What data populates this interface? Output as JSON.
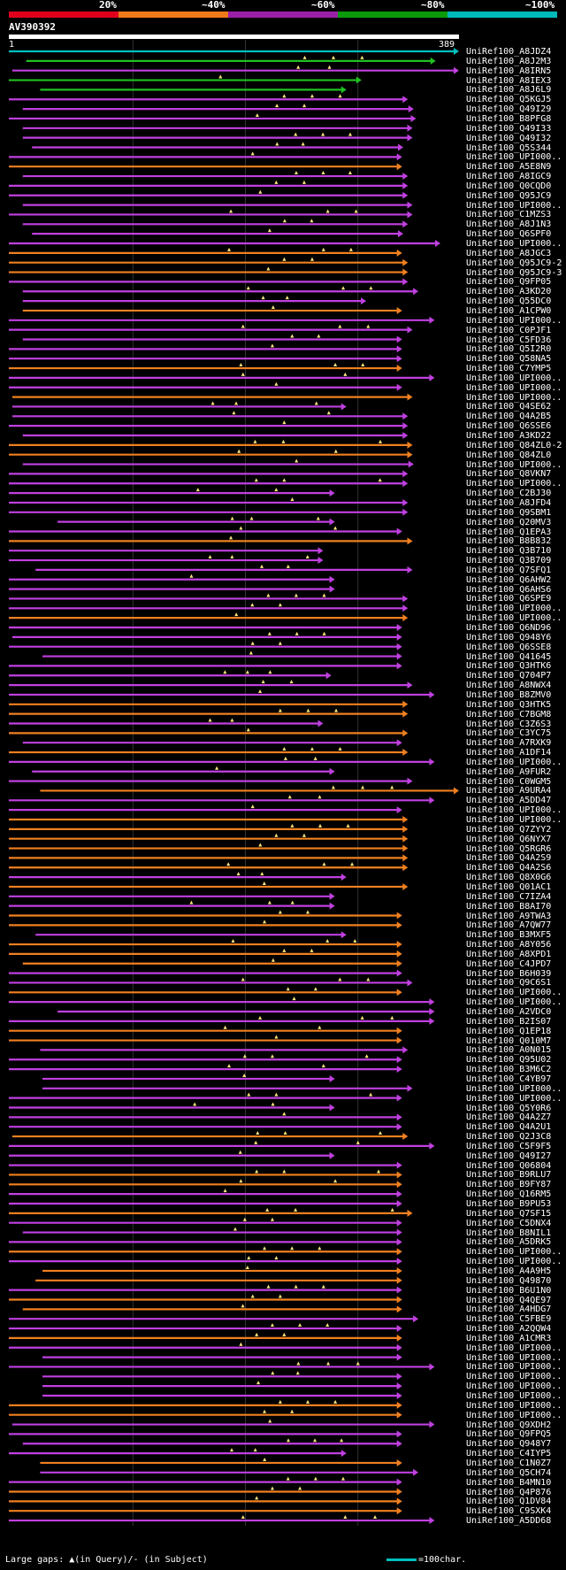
{
  "legend": {
    "bands": [
      {
        "label": "20%",
        "color": "#e0001c"
      },
      {
        "label": "~40%",
        "color": "#ef7a1a"
      },
      {
        "label": "~60%",
        "color": "#9b1fa8"
      },
      {
        "label": "~80%",
        "color": "#0a9a0a"
      },
      {
        "label": "~100%",
        "color": "#00b9b9"
      }
    ]
  },
  "query": {
    "name": "AV390392",
    "start_label": "1",
    "end_label": "389"
  },
  "colors": {
    "cyan": "#00c0c0",
    "green": "#20c020",
    "purple": "#c040e0",
    "orange": "#f08020",
    "gap": "#ffe680"
  },
  "hits": [
    {
      "name": "UniRef100_A8JDZ4",
      "c": "cyan",
      "s": 1,
      "e": 389
    },
    {
      "name": "UniRef100_A8J2M3",
      "c": "green",
      "s": 16,
      "e": 369
    },
    {
      "name": "UniRef100_A8IRN5",
      "c": "purple",
      "s": 4,
      "e": 389
    },
    {
      "name": "UniRef100_A8IEX3",
      "c": "green",
      "s": 1,
      "e": 305
    },
    {
      "name": "UniRef100_A8J6L9",
      "c": "green",
      "s": 28,
      "e": 292
    },
    {
      "name": "UniRef100_Q5KGJ5",
      "c": "purple",
      "s": 1,
      "e": 345
    },
    {
      "name": "UniRef100_Q49I29",
      "c": "purple",
      "s": 13,
      "e": 350
    },
    {
      "name": "UniRef100_B8PFG8",
      "c": "purple",
      "s": 1,
      "e": 352
    },
    {
      "name": "UniRef100_Q49I33",
      "c": "purple",
      "s": 13,
      "e": 349
    },
    {
      "name": "UniRef100_Q49I32",
      "c": "purple",
      "s": 13,
      "e": 349
    },
    {
      "name": "UniRef100_Q5S344",
      "c": "purple",
      "s": 21,
      "e": 341
    },
    {
      "name": "UniRef100_UPI000..",
      "c": "purple",
      "s": 1,
      "e": 340
    },
    {
      "name": "UniRef100_A5E8N9",
      "c": "orange",
      "s": 1,
      "e": 340
    },
    {
      "name": "UniRef100_A8IGC9",
      "c": "purple",
      "s": 13,
      "e": 345
    },
    {
      "name": "UniRef100_Q0CQD0",
      "c": "purple",
      "s": 1,
      "e": 345
    },
    {
      "name": "UniRef100_Q95JC9",
      "c": "purple",
      "s": 1,
      "e": 345
    },
    {
      "name": "UniRef100_UPI000..",
      "c": "purple",
      "s": 13,
      "e": 349
    },
    {
      "name": "UniRef100_C1MZS3",
      "c": "purple",
      "s": 1,
      "e": 349
    },
    {
      "name": "UniRef100_A8J1N3",
      "c": "purple",
      "s": 13,
      "e": 345
    },
    {
      "name": "UniRef100_Q6SPF0",
      "c": "purple",
      "s": 21,
      "e": 341
    },
    {
      "name": "UniRef100_UPI000..",
      "c": "purple",
      "s": 1,
      "e": 373
    },
    {
      "name": "UniRef100_A8JGC3",
      "c": "orange",
      "s": 1,
      "e": 340
    },
    {
      "name": "UniRef100_Q95JC9-2",
      "c": "orange",
      "s": 1,
      "e": 345
    },
    {
      "name": "UniRef100_Q95JC9-3",
      "c": "orange",
      "s": 1,
      "e": 345
    },
    {
      "name": "UniRef100_Q9FP05",
      "c": "purple",
      "s": 1,
      "e": 345
    },
    {
      "name": "UniRef100_A3KD20",
      "c": "purple",
      "s": 13,
      "e": 354
    },
    {
      "name": "UniRef100_Q55DC0",
      "c": "purple",
      "s": 13,
      "e": 309
    },
    {
      "name": "UniRef100_A1CPW0",
      "c": "orange",
      "s": 13,
      "e": 340
    },
    {
      "name": "UniRef100_UPI000..",
      "c": "purple",
      "s": 1,
      "e": 368
    },
    {
      "name": "UniRef100_C0PJF1",
      "c": "purple",
      "s": 1,
      "e": 349
    },
    {
      "name": "UniRef100_C5FD36",
      "c": "purple",
      "s": 13,
      "e": 340
    },
    {
      "name": "UniRef100_Q5I2R0",
      "c": "purple",
      "s": 1,
      "e": 340
    },
    {
      "name": "UniRef100_Q58NA5",
      "c": "purple",
      "s": 1,
      "e": 340
    },
    {
      "name": "UniRef100_C7YMP5",
      "c": "orange",
      "s": 1,
      "e": 340
    },
    {
      "name": "UniRef100_UPI000..",
      "c": "purple",
      "s": 1,
      "e": 368
    },
    {
      "name": "UniRef100_UPI000..",
      "c": "purple",
      "s": 1,
      "e": 340
    },
    {
      "name": "UniRef100_UPI000..",
      "c": "orange",
      "s": 4,
      "e": 349
    },
    {
      "name": "UniRef100_Q4SE62",
      "c": "purple",
      "s": 4,
      "e": 292
    },
    {
      "name": "UniRef100_Q4A2B5",
      "c": "purple",
      "s": 4,
      "e": 345
    },
    {
      "name": "UniRef100_Q6SSE6",
      "c": "purple",
      "s": 1,
      "e": 345
    },
    {
      "name": "UniRef100_A3KD22",
      "c": "purple",
      "s": 13,
      "e": 345
    },
    {
      "name": "UniRef100_Q84ZL0-2",
      "c": "orange",
      "s": 1,
      "e": 349
    },
    {
      "name": "UniRef100_Q84ZL0",
      "c": "orange",
      "s": 1,
      "e": 349
    },
    {
      "name": "UniRef100_UPI000..",
      "c": "purple",
      "s": 13,
      "e": 350
    },
    {
      "name": "UniRef100_Q8VKN7",
      "c": "purple",
      "s": 1,
      "e": 345
    },
    {
      "name": "UniRef100_UPI000..",
      "c": "purple",
      "s": 1,
      "e": 345
    },
    {
      "name": "UniRef100_C2BJ30",
      "c": "purple",
      "s": 1,
      "e": 282
    },
    {
      "name": "UniRef100_A8JFD4",
      "c": "purple",
      "s": 1,
      "e": 345
    },
    {
      "name": "UniRef100_Q9SBM1",
      "c": "purple",
      "s": 1,
      "e": 345
    },
    {
      "name": "UniRef100_Q20MV3",
      "c": "purple",
      "s": 43,
      "e": 282
    },
    {
      "name": "UniRef100_Q1EPA3",
      "c": "purple",
      "s": 1,
      "e": 340
    },
    {
      "name": "UniRef100_B8B832",
      "c": "orange",
      "s": 1,
      "e": 349
    },
    {
      "name": "UniRef100_Q3B710",
      "c": "purple",
      "s": 1,
      "e": 272
    },
    {
      "name": "UniRef100_Q3B709",
      "c": "purple",
      "s": 1,
      "e": 272
    },
    {
      "name": "UniRef100_Q7SFQ1",
      "c": "purple",
      "s": 24,
      "e": 349
    },
    {
      "name": "UniRef100_Q6AHW2",
      "c": "purple",
      "s": 1,
      "e": 282
    },
    {
      "name": "UniRef100_Q6AHS6",
      "c": "purple",
      "s": 1,
      "e": 282
    },
    {
      "name": "UniRef100_Q6SPE9",
      "c": "purple",
      "s": 1,
      "e": 345
    },
    {
      "name": "UniRef100_UPI000..",
      "c": "purple",
      "s": 1,
      "e": 345
    },
    {
      "name": "UniRef100_UPI000..",
      "c": "orange",
      "s": 1,
      "e": 345
    },
    {
      "name": "UniRef100_Q6ND96",
      "c": "purple",
      "s": 1,
      "e": 340
    },
    {
      "name": "UniRef100_Q948Y6",
      "c": "purple",
      "s": 4,
      "e": 340
    },
    {
      "name": "UniRef100_Q6SSE8",
      "c": "purple",
      "s": 1,
      "e": 340
    },
    {
      "name": "UniRef100_Q41645",
      "c": "purple",
      "s": 30,
      "e": 340
    },
    {
      "name": "UniRef100_Q3HTK6",
      "c": "purple",
      "s": 1,
      "e": 340
    },
    {
      "name": "UniRef100_Q704P7",
      "c": "purple",
      "s": 1,
      "e": 279
    },
    {
      "name": "UniRef100_A8NWX4",
      "c": "purple",
      "s": 1,
      "e": 349
    },
    {
      "name": "UniRef100_B8ZMV0",
      "c": "purple",
      "s": 1,
      "e": 368
    },
    {
      "name": "UniRef100_Q3HTK5",
      "c": "orange",
      "s": 1,
      "e": 345
    },
    {
      "name": "UniRef100_C7BGM8",
      "c": "orange",
      "s": 1,
      "e": 345
    },
    {
      "name": "UniRef100_C3Z6S3",
      "c": "purple",
      "s": 1,
      "e": 272
    },
    {
      "name": "UniRef100_C3YC75",
      "c": "orange",
      "s": 1,
      "e": 345
    },
    {
      "name": "UniRef100_A7RXK9",
      "c": "purple",
      "s": 13,
      "e": 340
    },
    {
      "name": "UniRef100_A1DF14",
      "c": "orange",
      "s": 1,
      "e": 345
    },
    {
      "name": "UniRef100_UPI000..",
      "c": "purple",
      "s": 1,
      "e": 368
    },
    {
      "name": "UniRef100_A9FUR2",
      "c": "purple",
      "s": 21,
      "e": 282
    },
    {
      "name": "UniRef100_C0WGM5",
      "c": "purple",
      "s": 1,
      "e": 349
    },
    {
      "name": "UniRef100_A9URA4",
      "c": "orange",
      "s": 28,
      "e": 389
    },
    {
      "name": "UniRef100_A5DD47",
      "c": "purple",
      "s": 1,
      "e": 368
    },
    {
      "name": "UniRef100_UPI000..",
      "c": "purple",
      "s": 1,
      "e": 340
    },
    {
      "name": "UniRef100_UPI000..",
      "c": "orange",
      "s": 1,
      "e": 345
    },
    {
      "name": "UniRef100_Q7ZYY2",
      "c": "orange",
      "s": 1,
      "e": 345
    },
    {
      "name": "UniRef100_Q6NYX7",
      "c": "orange",
      "s": 1,
      "e": 345
    },
    {
      "name": "UniRef100_Q5RGR6",
      "c": "orange",
      "s": 1,
      "e": 345
    },
    {
      "name": "UniRef100_Q4A2S9",
      "c": "orange",
      "s": 1,
      "e": 345
    },
    {
      "name": "UniRef100_Q4A2S6",
      "c": "orange",
      "s": 1,
      "e": 345
    },
    {
      "name": "UniRef100_Q8X0G6",
      "c": "purple",
      "s": 1,
      "e": 292
    },
    {
      "name": "UniRef100_Q01AC1",
      "c": "orange",
      "s": 1,
      "e": 345
    },
    {
      "name": "UniRef100_C7IZA4",
      "c": "purple",
      "s": 1,
      "e": 282
    },
    {
      "name": "UniRef100_B8AI70",
      "c": "purple",
      "s": 1,
      "e": 282
    },
    {
      "name": "UniRef100_A9TWA3",
      "c": "orange",
      "s": 1,
      "e": 340
    },
    {
      "name": "UniRef100_A7QW77",
      "c": "orange",
      "s": 1,
      "e": 340
    },
    {
      "name": "UniRef100_B3MXF5",
      "c": "purple",
      "s": 24,
      "e": 292
    },
    {
      "name": "UniRef100_A8Y056",
      "c": "orange",
      "s": 1,
      "e": 340
    },
    {
      "name": "UniRef100_A8XPD1",
      "c": "orange",
      "s": 1,
      "e": 340
    },
    {
      "name": "UniRef100_C4JPD7",
      "c": "orange",
      "s": 13,
      "e": 340
    },
    {
      "name": "UniRef100_B6H039",
      "c": "purple",
      "s": 1,
      "e": 340
    },
    {
      "name": "UniRef100_Q9C6S1",
      "c": "purple",
      "s": 1,
      "e": 349
    },
    {
      "name": "UniRef100_UPI000..",
      "c": "orange",
      "s": 1,
      "e": 340
    },
    {
      "name": "UniRef100_UPI000..",
      "c": "purple",
      "s": 1,
      "e": 368
    },
    {
      "name": "UniRef100_A2VDC0",
      "c": "purple",
      "s": 43,
      "e": 368
    },
    {
      "name": "UniRef100_B2IS07",
      "c": "purple",
      "s": 1,
      "e": 368
    },
    {
      "name": "UniRef100_Q1EP18",
      "c": "orange",
      "s": 1,
      "e": 340
    },
    {
      "name": "UniRef100_Q010M7",
      "c": "orange",
      "s": 1,
      "e": 340
    },
    {
      "name": "UniRef100_A0N015",
      "c": "purple",
      "s": 28,
      "e": 345
    },
    {
      "name": "UniRef100_Q95U02",
      "c": "purple",
      "s": 1,
      "e": 340
    },
    {
      "name": "UniRef100_B3M6C2",
      "c": "purple",
      "s": 1,
      "e": 340
    },
    {
      "name": "UniRef100_C4YB97",
      "c": "purple",
      "s": 30,
      "e": 282
    },
    {
      "name": "UniRef100_UPI000..",
      "c": "purple",
      "s": 30,
      "e": 349
    },
    {
      "name": "UniRef100_UPI000..",
      "c": "purple",
      "s": 1,
      "e": 340
    },
    {
      "name": "UniRef100_Q5Y0R6",
      "c": "purple",
      "s": 1,
      "e": 282
    },
    {
      "name": "UniRef100_Q4A2Z7",
      "c": "purple",
      "s": 1,
      "e": 340
    },
    {
      "name": "UniRef100_Q4A2U1",
      "c": "purple",
      "s": 1,
      "e": 340
    },
    {
      "name": "UniRef100_Q2J3C8",
      "c": "orange",
      "s": 4,
      "e": 345
    },
    {
      "name": "UniRef100_C5F9F5",
      "c": "purple",
      "s": 1,
      "e": 368
    },
    {
      "name": "UniRef100_Q49I27",
      "c": "purple",
      "s": 1,
      "e": 282
    },
    {
      "name": "UniRef100_Q06804",
      "c": "purple",
      "s": 1,
      "e": 340
    },
    {
      "name": "UniRef100_B9RLU7",
      "c": "orange",
      "s": 1,
      "e": 340
    },
    {
      "name": "UniRef100_B9FY87",
      "c": "orange",
      "s": 1,
      "e": 340
    },
    {
      "name": "UniRef100_Q16RM5",
      "c": "purple",
      "s": 1,
      "e": 340
    },
    {
      "name": "UniRef100_B9PU53",
      "c": "purple",
      "s": 1,
      "e": 340
    },
    {
      "name": "UniRef100_Q7SF15",
      "c": "orange",
      "s": 1,
      "e": 349
    },
    {
      "name": "UniRef100_C5DNX4",
      "c": "purple",
      "s": 1,
      "e": 340
    },
    {
      "name": "UniRef100_B8NIL1",
      "c": "purple",
      "s": 13,
      "e": 340
    },
    {
      "name": "UniRef100_A5DRK5",
      "c": "purple",
      "s": 1,
      "e": 340
    },
    {
      "name": "UniRef100_UPI000..",
      "c": "orange",
      "s": 1,
      "e": 340
    },
    {
      "name": "UniRef100_UPI000..",
      "c": "purple",
      "s": 1,
      "e": 340
    },
    {
      "name": "UniRef100_A4A9H5",
      "c": "orange",
      "s": 30,
      "e": 340
    },
    {
      "name": "UniRef100_Q49870",
      "c": "orange",
      "s": 24,
      "e": 340
    },
    {
      "name": "UniRef100_B6U1N0",
      "c": "purple",
      "s": 1,
      "e": 340
    },
    {
      "name": "UniRef100_Q4QE97",
      "c": "orange",
      "s": 1,
      "e": 340
    },
    {
      "name": "UniRef100_A4HDG7",
      "c": "orange",
      "s": 13,
      "e": 340
    },
    {
      "name": "UniRef100_C5FBE9",
      "c": "purple",
      "s": 1,
      "e": 354
    },
    {
      "name": "UniRef100_A2QQW4",
      "c": "purple",
      "s": 1,
      "e": 340
    },
    {
      "name": "UniRef100_A1CMR3",
      "c": "orange",
      "s": 1,
      "e": 340
    },
    {
      "name": "UniRef100_UPI000..",
      "c": "purple",
      "s": 1,
      "e": 340
    },
    {
      "name": "UniRef100_UPI000..",
      "c": "purple",
      "s": 30,
      "e": 340
    },
    {
      "name": "UniRef100_UPI000..",
      "c": "purple",
      "s": 1,
      "e": 368
    },
    {
      "name": "UniRef100_UPI000..",
      "c": "purple",
      "s": 30,
      "e": 340
    },
    {
      "name": "UniRef100_UPI000..",
      "c": "purple",
      "s": 30,
      "e": 340
    },
    {
      "name": "UniRef100_UPI000..",
      "c": "purple",
      "s": 30,
      "e": 340
    },
    {
      "name": "UniRef100_UPI000..",
      "c": "orange",
      "s": 1,
      "e": 340
    },
    {
      "name": "UniRef100_UPI000..",
      "c": "orange",
      "s": 1,
      "e": 340
    },
    {
      "name": "UniRef100_Q9XDH2",
      "c": "purple",
      "s": 4,
      "e": 368
    },
    {
      "name": "UniRef100_Q9FPQ5",
      "c": "purple",
      "s": 1,
      "e": 340
    },
    {
      "name": "UniRef100_Q948Y7",
      "c": "purple",
      "s": 13,
      "e": 340
    },
    {
      "name": "UniRef100_C4IYP5",
      "c": "purple",
      "s": 1,
      "e": 292
    },
    {
      "name": "UniRef100_C1N0Z7",
      "c": "orange",
      "s": 28,
      "e": 340
    },
    {
      "name": "UniRef100_Q5CH74",
      "c": "purple",
      "s": 28,
      "e": 354
    },
    {
      "name": "UniRef100_B4MN10",
      "c": "purple",
      "s": 1,
      "e": 340
    },
    {
      "name": "UniRef100_Q4P876",
      "c": "orange",
      "s": 1,
      "e": 340
    },
    {
      "name": "UniRef100_Q1DV84",
      "c": "orange",
      "s": 1,
      "e": 340
    },
    {
      "name": "UniRef100_C9SXK4",
      "c": "orange",
      "s": 1,
      "e": 340
    },
    {
      "name": "UniRef100_A5DD68",
      "c": "purple",
      "s": 1,
      "e": 368
    }
  ],
  "footer": {
    "gaps_text": "Large gaps: ▲(in Query)/- (in Subject)",
    "scale_text": "=100char."
  }
}
